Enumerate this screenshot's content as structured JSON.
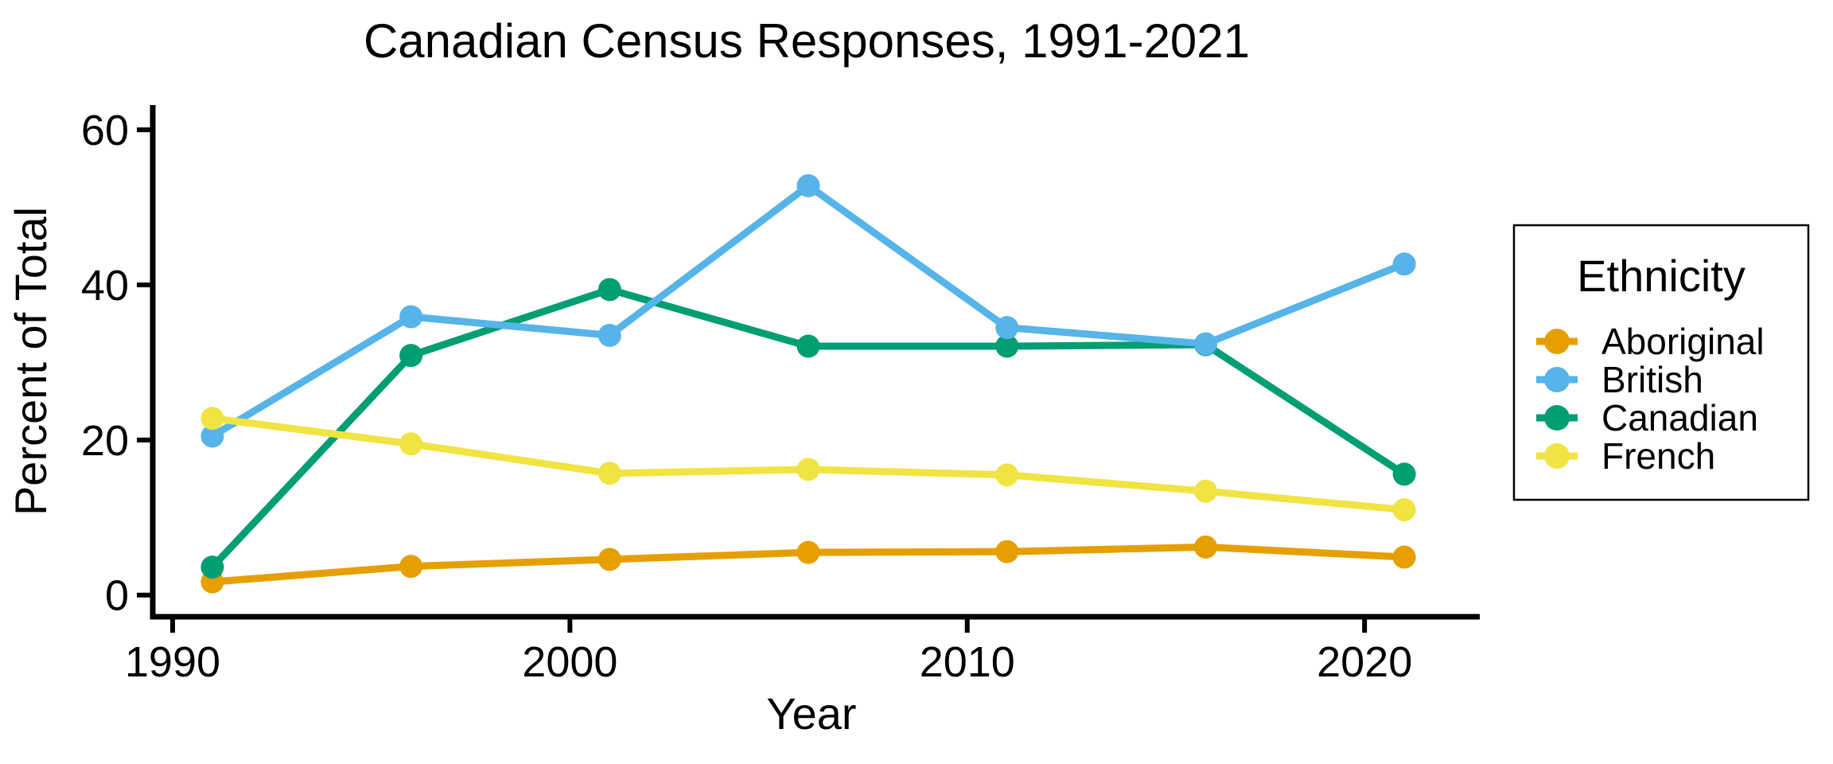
{
  "chart_data": {
    "type": "line",
    "title": "Canadian Census Responses, 1991-2021",
    "xlabel": "Year",
    "ylabel": "Percent of Total",
    "legend_title": "Ethnicity",
    "legend_position": "right",
    "grid": false,
    "x": [
      1991,
      1996,
      2001,
      2006,
      2011,
      2016,
      2021
    ],
    "series": [
      {
        "name": "Aboriginal",
        "color": "#E69F00",
        "values": [
          1.7,
          3.7,
          4.6,
          5.5,
          5.6,
          6.2,
          4.9
        ]
      },
      {
        "name": "British",
        "color": "#56B4E9",
        "values": [
          20.5,
          35.9,
          33.5,
          52.8,
          34.5,
          32.4,
          42.7
        ]
      },
      {
        "name": "Canadian",
        "color": "#009E73",
        "values": [
          3.6,
          30.9,
          39.4,
          32.1,
          32.1,
          32.3,
          15.6
        ]
      },
      {
        "name": "French",
        "color": "#F0E442",
        "values": [
          22.8,
          19.5,
          15.7,
          16.2,
          15.5,
          13.4,
          11.0
        ]
      }
    ],
    "draw_order": [
      "Aboriginal",
      "Canadian",
      "British",
      "French"
    ],
    "x_ticks": [
      1990,
      2000,
      2010,
      2020
    ],
    "y_ticks": [
      0,
      20,
      40,
      60
    ],
    "x_range": [
      1989.5,
      2022.9
    ],
    "y_range": [
      -2.8,
      63.2
    ],
    "axis_color": "#000000",
    "background_color": "#ffffff"
  }
}
